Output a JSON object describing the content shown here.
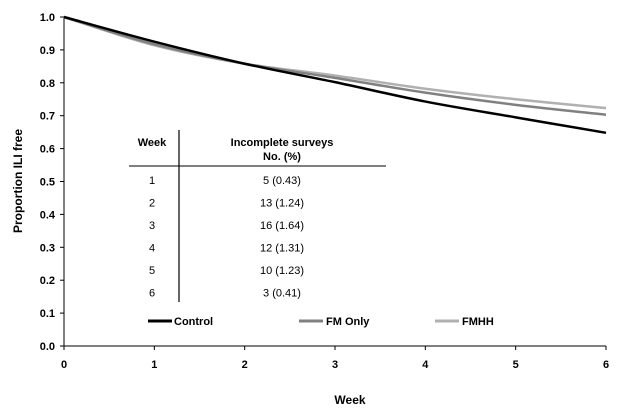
{
  "chart_data": {
    "type": "line",
    "xlabel": "Week",
    "ylabel": "Proportion ILI free",
    "xlim": [
      0,
      6
    ],
    "ylim": [
      0,
      1.0
    ],
    "x_ticks": [
      "0",
      "1",
      "2",
      "3",
      "4",
      "5",
      "6"
    ],
    "y_ticks": [
      "0.0",
      "0.1",
      "0.2",
      "0.3",
      "0.4",
      "0.5",
      "0.6",
      "0.7",
      "0.8",
      "0.9",
      "1.0"
    ],
    "grid": false,
    "legend_position": "bottom-inside",
    "x": [
      0,
      1,
      2,
      3,
      4,
      5,
      6
    ],
    "series": [
      {
        "name": "Control",
        "color": "#000000",
        "values": [
          1.0,
          0.925,
          0.858,
          0.802,
          0.743,
          0.695,
          0.648
        ]
      },
      {
        "name": "FM Only",
        "color": "#808080",
        "values": [
          1.0,
          0.917,
          0.858,
          0.815,
          0.77,
          0.733,
          0.703
        ]
      },
      {
        "name": "FMHH",
        "color": "#b0b0b0",
        "values": [
          1.0,
          0.914,
          0.858,
          0.822,
          0.782,
          0.75,
          0.723
        ]
      }
    ]
  },
  "inset_table": {
    "col1_header": "Week",
    "col2_header_line1": "Incomplete surveys",
    "col2_header_line2": "No. (%)",
    "rows": [
      {
        "week": "1",
        "value": "5 (0.43)"
      },
      {
        "week": "2",
        "value": "13 (1.24)"
      },
      {
        "week": "3",
        "value": "16 (1.64)"
      },
      {
        "week": "4",
        "value": "12 (1.31)"
      },
      {
        "week": "5",
        "value": "10 (1.23)"
      },
      {
        "week": "6",
        "value": "3 (0.41)"
      }
    ]
  }
}
